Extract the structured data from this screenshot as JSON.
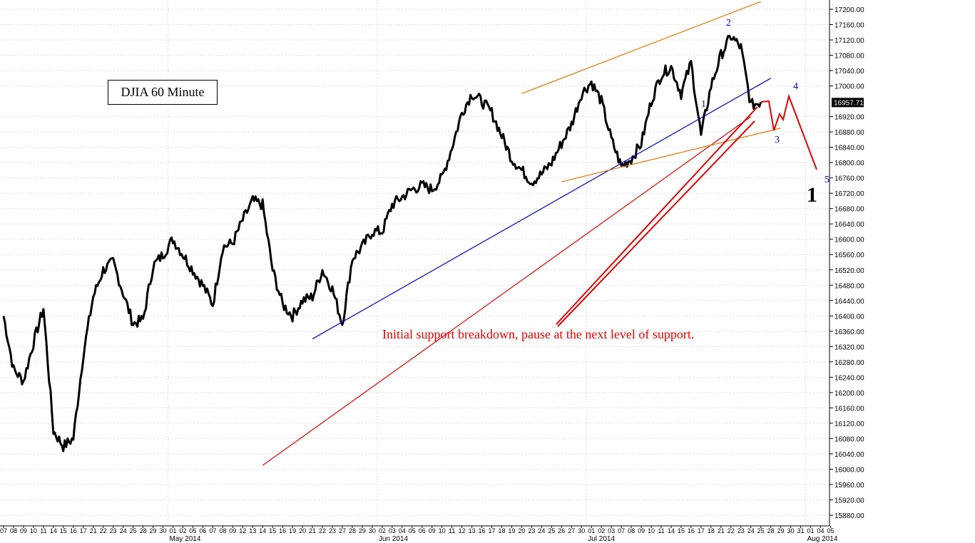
{
  "chart_data": {
    "type": "line",
    "title": "DJIA 60 Minute",
    "y_ticks": [
      17200,
      17160,
      17120,
      17080,
      17040,
      17000,
      16920,
      16880,
      16840,
      16800,
      16760,
      16720,
      16680,
      16640,
      16600,
      16560,
      16520,
      16480,
      16440,
      16400,
      16360,
      16320,
      16280,
      16240,
      16200,
      16160,
      16120,
      16080,
      16040,
      16000,
      15960,
      15920,
      15880
    ],
    "ylim": [
      15840,
      17220
    ],
    "last_price": "16957.71",
    "x_day_labels": [
      "07",
      "08",
      "09",
      "10",
      "11",
      "14",
      "15",
      "16",
      "17",
      "21",
      "22",
      "23",
      "24",
      "25",
      "28",
      "29",
      "30",
      "01",
      "02",
      "05",
      "06",
      "07",
      "08",
      "09",
      "12",
      "13",
      "14",
      "15",
      "16",
      "19",
      "20",
      "21",
      "22",
      "23",
      "27",
      "28",
      "29",
      "30",
      "02",
      "03",
      "04",
      "05",
      "06",
      "09",
      "10",
      "11",
      "12",
      "13",
      "16",
      "17",
      "18",
      "19",
      "20",
      "23",
      "24",
      "25",
      "26",
      "27",
      "30",
      "01",
      "02",
      "03",
      "07",
      "08",
      "09",
      "10",
      "11",
      "14",
      "15",
      "16",
      "17",
      "18",
      "21",
      "22",
      "23",
      "24",
      "25",
      "28",
      "29",
      "30",
      "31",
      "01",
      "04",
      "05"
    ],
    "x_month_labels": [
      "May 2014",
      "Jun 2014",
      "Jul 2014",
      "Aug 2014"
    ],
    "series": [
      {
        "x": [
          7,
          8,
          9,
          10,
          11,
          14,
          15,
          16,
          17,
          21,
          22,
          23,
          24,
          25,
          28,
          29,
          30,
          1,
          2,
          5,
          6,
          7,
          8,
          9,
          12,
          13,
          14,
          15,
          16,
          19,
          20,
          21,
          22,
          23,
          27,
          28,
          29,
          30,
          2,
          3,
          4,
          5,
          6,
          9,
          10,
          11,
          12,
          13,
          16,
          17,
          18,
          19,
          20,
          23,
          24,
          25,
          26,
          27,
          30,
          1,
          2,
          3,
          7,
          8,
          9,
          10,
          11,
          14,
          15,
          16,
          17,
          18,
          21,
          22,
          23,
          24,
          25
        ],
        "values": [
          16400,
          16260,
          16230,
          16330,
          16420,
          16100,
          16060,
          16080,
          16300,
          16450,
          16520,
          16540,
          16460,
          16380,
          16390,
          16530,
          16560,
          16600,
          16560,
          16520,
          16480,
          16430,
          16580,
          16590,
          16650,
          16700,
          16690,
          16520,
          16430,
          16400,
          16440,
          16450,
          16520,
          16470,
          16380,
          16550,
          16580,
          16620,
          16620,
          16690,
          16710,
          16730,
          16740,
          16730,
          16760,
          16840,
          16930,
          16980,
          16960,
          16930,
          16870,
          16810,
          16780,
          16750,
          16770,
          16800,
          16850,
          16900,
          16980,
          17010,
          16960,
          16860,
          16790,
          16810,
          16850,
          16960,
          17030,
          17050,
          16980,
          17060,
          16870,
          17000,
          17080,
          17130,
          17100,
          16950,
          16957.71
        ],
        "color": "#000000"
      }
    ],
    "trendlines": [
      {
        "color": "#dd0000",
        "from": [
          "May 14",
          16010
        ],
        "to": [
          "Jul 24",
          16920
        ]
      },
      {
        "color": "#0000cc",
        "from": [
          "May 21",
          16340
        ],
        "to": [
          "Jul 28",
          17020
        ]
      },
      {
        "color": "#e07800",
        "from": [
          "Jun 20",
          16980
        ],
        "to": [
          "Jul 25",
          17220
        ]
      },
      {
        "color": "#e07800",
        "from": [
          "Jun 26",
          16750
        ],
        "to": [
          "Jul 29",
          16890
        ]
      }
    ],
    "wave_labels": [
      "1",
      "2",
      "3",
      "4",
      "5"
    ],
    "big_label": "1",
    "annotation": "Initial support breakdown, pause at the next level of support.",
    "grid": true
  }
}
